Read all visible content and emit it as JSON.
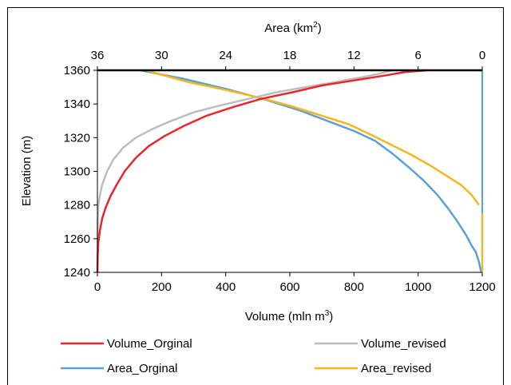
{
  "chart_data": {
    "type": "line",
    "axes": {
      "bottom": {
        "label": "Volume (mln m",
        "label_sup": "3",
        "label_suffix": ")",
        "range": [
          0,
          1200
        ],
        "ticks": [
          "0",
          "200",
          "400",
          "600",
          "800",
          "1000",
          "1200"
        ]
      },
      "top": {
        "label": "Area (km",
        "label_sup": "2",
        "label_suffix": ")",
        "range": [
          36,
          0
        ],
        "ticks": [
          "36",
          "30",
          "24",
          "18",
          "12",
          "6",
          "0"
        ]
      },
      "left": {
        "label": "Elevation (m)",
        "range": [
          1240,
          1360
        ],
        "ticks": [
          "1240",
          "1260",
          "1280",
          "1300",
          "1320",
          "1340",
          "1360"
        ]
      }
    },
    "grid": false,
    "legend_position": "bottom",
    "series": [
      {
        "name": "Volume_Orginal",
        "axis": "bottom",
        "color": "#e8262b",
        "points": [
          [
            0,
            1240
          ],
          [
            1,
            1250
          ],
          [
            3,
            1258
          ],
          [
            8,
            1265
          ],
          [
            15,
            1272
          ],
          [
            25,
            1278
          ],
          [
            40,
            1285
          ],
          [
            60,
            1292
          ],
          [
            85,
            1300
          ],
          [
            120,
            1308
          ],
          [
            160,
            1315
          ],
          [
            210,
            1321
          ],
          [
            270,
            1327
          ],
          [
            340,
            1333
          ],
          [
            420,
            1338
          ],
          [
            510,
            1343
          ],
          [
            610,
            1347
          ],
          [
            700,
            1351
          ],
          [
            800,
            1354
          ],
          [
            900,
            1357
          ],
          [
            960,
            1359
          ],
          [
            1030,
            1360
          ]
        ]
      },
      {
        "name": "Volume_revised",
        "axis": "bottom",
        "color": "#bdbdbd",
        "points": [
          [
            0,
            1240
          ],
          [
            1,
            1270
          ],
          [
            3,
            1280
          ],
          [
            8,
            1286
          ],
          [
            15,
            1292
          ],
          [
            30,
            1300
          ],
          [
            50,
            1307
          ],
          [
            80,
            1314
          ],
          [
            120,
            1320
          ],
          [
            170,
            1325
          ],
          [
            230,
            1330
          ],
          [
            300,
            1335
          ],
          [
            380,
            1339
          ],
          [
            470,
            1343
          ],
          [
            560,
            1347
          ],
          [
            650,
            1350
          ],
          [
            740,
            1353
          ],
          [
            830,
            1356
          ],
          [
            880,
            1358
          ],
          [
            920,
            1360
          ]
        ]
      },
      {
        "name": "Area_Orginal",
        "axis": "top",
        "color": "#5ba0d8",
        "points": [
          [
            0,
            1240
          ],
          [
            0,
            1360
          ],
          [
            0.1,
            1240
          ],
          [
            0.3,
            1246
          ],
          [
            0.6,
            1252
          ],
          [
            1,
            1256
          ],
          [
            1.5,
            1262
          ],
          [
            2.3,
            1270
          ],
          [
            3.2,
            1278
          ],
          [
            4.2,
            1286
          ],
          [
            5.4,
            1294
          ],
          [
            6.8,
            1302
          ],
          [
            8.3,
            1310
          ],
          [
            10,
            1318
          ],
          [
            12,
            1324
          ],
          [
            14.5,
            1330
          ],
          [
            17,
            1336
          ],
          [
            20.5,
            1343
          ],
          [
            24,
            1349
          ],
          [
            28,
            1355
          ],
          [
            32,
            1360
          ]
        ]
      },
      {
        "name": "Area_revised",
        "axis": "top",
        "color": "#f5b81c",
        "points": [
          [
            0,
            1240
          ],
          [
            0,
            1275
          ],
          [
            0.3,
            1280
          ],
          [
            1,
            1286
          ],
          [
            2,
            1292
          ],
          [
            3.5,
            1298
          ],
          [
            5,
            1304
          ],
          [
            6.7,
            1310
          ],
          [
            8.6,
            1316
          ],
          [
            10.5,
            1322
          ],
          [
            12.5,
            1328
          ],
          [
            15,
            1333
          ],
          [
            18,
            1339
          ],
          [
            21,
            1344
          ],
          [
            24.5,
            1349
          ],
          [
            27.5,
            1353
          ],
          [
            31.5,
            1360
          ]
        ]
      }
    ]
  }
}
